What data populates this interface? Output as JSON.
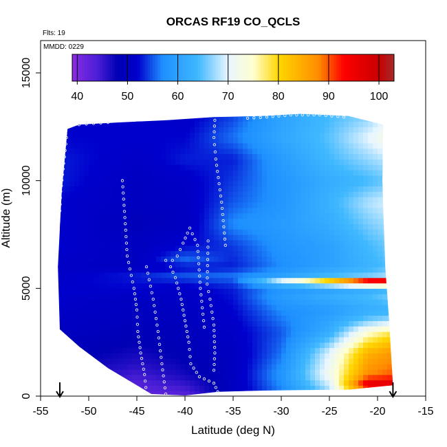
{
  "chart_data": {
    "type": "heatmap",
    "title": "ORCAS RF19 CO_QCLS",
    "xlabel": "Latitude (deg N)",
    "ylabel": "Altitude (m)",
    "xlim": [
      -55,
      -15
    ],
    "ylim": [
      0,
      16500
    ],
    "x_ticks": [
      -55,
      -50,
      -45,
      -40,
      -35,
      -30,
      -25,
      -20,
      -15
    ],
    "y_ticks": [
      0,
      5000,
      10000,
      15000
    ],
    "annotations": {
      "flights": "Flts: 19",
      "date": "MMDD: 0229"
    },
    "colorbar": {
      "ticks": [
        40,
        50,
        60,
        70,
        80,
        90,
        100
      ],
      "range": [
        39,
        103
      ],
      "stops": [
        [
          39,
          "#8a2be2"
        ],
        [
          44,
          "#4b1fd6"
        ],
        [
          48,
          "#0000b4"
        ],
        [
          52,
          "#0000cd"
        ],
        [
          57,
          "#1e90ff"
        ],
        [
          64,
          "#3fb8ff"
        ],
        [
          70,
          "#e8f6ff"
        ],
        [
          75,
          "#ffffd0"
        ],
        [
          80,
          "#ffd700"
        ],
        [
          88,
          "#ff8c00"
        ],
        [
          93,
          "#ff0000"
        ],
        [
          100,
          "#c80000"
        ],
        [
          103,
          "#a52a2a"
        ]
      ]
    },
    "domain_boundary": {
      "upper": [
        [
          -52.2,
          12400
        ],
        [
          -51,
          12600
        ],
        [
          -47,
          12700
        ],
        [
          -42,
          12800
        ],
        [
          -37,
          12950
        ],
        [
          -32,
          13000
        ],
        [
          -28,
          13100
        ],
        [
          -23,
          13000
        ],
        [
          -19.4,
          12600
        ]
      ],
      "lower": [
        [
          -53,
          3100
        ],
        [
          -51,
          2300
        ],
        [
          -48,
          1300
        ],
        [
          -45,
          500
        ],
        [
          -43.5,
          100
        ],
        [
          -40,
          30
        ],
        [
          -36.6,
          200
        ],
        [
          -33,
          250
        ],
        [
          -28,
          280
        ],
        [
          -23,
          300
        ],
        [
          -18.4,
          500
        ]
      ],
      "left": [
        [
          -53,
          3100
        ],
        [
          -53.2,
          6000
        ],
        [
          -52.8,
          9500
        ],
        [
          -52.2,
          12400
        ]
      ],
      "right": [
        [
          -19.4,
          12600
        ],
        [
          -19.5,
          10000
        ],
        [
          -19.2,
          6000
        ],
        [
          -18.8,
          3500
        ],
        [
          -18.4,
          500
        ]
      ]
    },
    "field_profiles": [
      {
        "lat": -53,
        "co": [
          [
            0,
            46
          ],
          [
            2000,
            49
          ],
          [
            3000,
            50
          ],
          [
            4000,
            51
          ],
          [
            5000,
            52
          ],
          [
            6000,
            51
          ],
          [
            7000,
            52
          ],
          [
            8000,
            52
          ],
          [
            9000,
            52
          ],
          [
            10000,
            53
          ],
          [
            11000,
            53
          ],
          [
            12000,
            52
          ],
          [
            13200,
            52
          ]
        ]
      },
      {
        "lat": -45,
        "co": [
          [
            0,
            42
          ],
          [
            800,
            44
          ],
          [
            1500,
            46
          ],
          [
            2500,
            48
          ],
          [
            3500,
            49.5
          ],
          [
            4500,
            50
          ],
          [
            5000,
            52
          ],
          [
            5600,
            53
          ],
          [
            6000,
            50
          ],
          [
            7000,
            50
          ],
          [
            8000,
            49
          ],
          [
            9000,
            50
          ],
          [
            10000,
            50
          ],
          [
            11000,
            51
          ],
          [
            12000,
            52
          ],
          [
            13200,
            52
          ]
        ]
      },
      {
        "lat": -40,
        "co": [
          [
            0,
            43
          ],
          [
            1000,
            47
          ],
          [
            2000,
            48.5
          ],
          [
            3000,
            49
          ],
          [
            4000,
            50
          ],
          [
            5000,
            51
          ],
          [
            5600,
            55
          ],
          [
            6000,
            52
          ],
          [
            6300,
            56
          ],
          [
            7000,
            52
          ],
          [
            8000,
            50
          ],
          [
            9000,
            50.5
          ],
          [
            10000,
            51
          ],
          [
            11000,
            53
          ],
          [
            12000,
            52
          ],
          [
            13200,
            51
          ]
        ]
      },
      {
        "lat": -35,
        "co": [
          [
            0,
            50
          ],
          [
            1000,
            50
          ],
          [
            2000,
            50
          ],
          [
            3000,
            51
          ],
          [
            4000,
            52
          ],
          [
            5000,
            53
          ],
          [
            5600,
            56
          ],
          [
            6000,
            53
          ],
          [
            7000,
            54
          ],
          [
            8000,
            57
          ],
          [
            9000,
            55
          ],
          [
            10000,
            54
          ],
          [
            11000,
            53
          ],
          [
            12000,
            56
          ],
          [
            13200,
            54
          ]
        ]
      },
      {
        "lat": -30,
        "co": [
          [
            0,
            56
          ],
          [
            1000,
            58
          ],
          [
            2000,
            56
          ],
          [
            3000,
            55
          ],
          [
            4000,
            57
          ],
          [
            4600,
            59
          ],
          [
            5000,
            58
          ],
          [
            5400,
            70
          ],
          [
            5600,
            60
          ],
          [
            6000,
            57
          ],
          [
            7000,
            58
          ],
          [
            8000,
            59
          ],
          [
            9000,
            58
          ],
          [
            10000,
            58
          ],
          [
            11000,
            59
          ],
          [
            12000,
            61
          ],
          [
            13200,
            60
          ]
        ]
      },
      {
        "lat": -25,
        "co": [
          [
            0,
            66
          ],
          [
            1000,
            72
          ],
          [
            2000,
            70
          ],
          [
            3000,
            62
          ],
          [
            4000,
            59
          ],
          [
            4600,
            62
          ],
          [
            5000,
            60
          ],
          [
            5400,
            82
          ],
          [
            5600,
            64
          ],
          [
            6000,
            60
          ],
          [
            7000,
            60
          ],
          [
            8000,
            62
          ],
          [
            9000,
            63
          ],
          [
            10000,
            62
          ],
          [
            11000,
            64
          ],
          [
            12000,
            65
          ],
          [
            13200,
            64
          ]
        ]
      },
      {
        "lat": -21,
        "co": [
          [
            0,
            78
          ],
          [
            500,
            98
          ],
          [
            1000,
            88
          ],
          [
            2000,
            84
          ],
          [
            3000,
            74
          ],
          [
            3500,
            66
          ],
          [
            4000,
            62
          ],
          [
            4600,
            64
          ],
          [
            5000,
            62
          ],
          [
            5400,
            95
          ],
          [
            5600,
            66
          ],
          [
            6000,
            63
          ],
          [
            7000,
            64
          ],
          [
            8000,
            66
          ],
          [
            9000,
            68
          ],
          [
            10000,
            64
          ],
          [
            11000,
            67
          ],
          [
            12000,
            70
          ],
          [
            13200,
            66
          ]
        ]
      },
      {
        "lat": -18.4,
        "co": [
          [
            0,
            80
          ],
          [
            500,
            98
          ],
          [
            1000,
            90
          ],
          [
            2000,
            87
          ],
          [
            3000,
            78
          ],
          [
            3500,
            68
          ],
          [
            4000,
            63
          ],
          [
            4600,
            66
          ],
          [
            5000,
            64
          ],
          [
            5400,
            97
          ],
          [
            5600,
            68
          ],
          [
            6000,
            65
          ],
          [
            7000,
            66
          ],
          [
            8000,
            68
          ],
          [
            9000,
            70
          ],
          [
            10000,
            66
          ],
          [
            11000,
            69
          ],
          [
            12000,
            74
          ],
          [
            13200,
            70
          ]
        ]
      }
    ],
    "flight_track": [
      [
        [
          -44,
          100
        ],
        [
          -44.2,
          1000
        ],
        [
          -44.6,
          2000
        ],
        [
          -44.9,
          3000
        ],
        [
          -45,
          4000
        ],
        [
          -45.3,
          5000
        ],
        [
          -46,
          6500
        ],
        [
          -46.2,
          8000
        ],
        [
          -46.5,
          10000
        ]
      ],
      [
        [
          -42,
          100
        ],
        [
          -42.4,
          1500
        ],
        [
          -42.8,
          3000
        ],
        [
          -43.3,
          4500
        ],
        [
          -44,
          6000
        ]
      ],
      [
        [
          -42,
          6300
        ],
        [
          -41.5,
          6000
        ],
        [
          -41,
          5500
        ],
        [
          -40.4,
          4500
        ],
        [
          -40,
          3500
        ],
        [
          -39.6,
          2500
        ],
        [
          -39.4,
          1500
        ],
        [
          -38.5,
          900
        ],
        [
          -37,
          600
        ],
        [
          -36.6,
          200
        ]
      ],
      [
        [
          -35.8,
          7000
        ],
        [
          -36.2,
          9000
        ],
        [
          -36.8,
          11000
        ],
        [
          -37,
          12000
        ],
        [
          -36.9,
          12800
        ]
      ],
      [
        [
          -38,
          3200
        ],
        [
          -38.4,
          5000
        ],
        [
          -38.7,
          7000
        ],
        [
          -39.5,
          7800
        ],
        [
          -40.2,
          7100
        ],
        [
          -40.8,
          6500
        ],
        [
          -41.3,
          6300
        ]
      ],
      [
        [
          -33.5,
          12900
        ],
        [
          -31.5,
          12950
        ],
        [
          -29,
          13050
        ],
        [
          -26,
          13050
        ],
        [
          -23.5,
          12950
        ]
      ],
      [
        [
          -51,
          12600
        ],
        [
          -49.5,
          12650
        ],
        [
          -48,
          12700
        ]
      ],
      [
        [
          -52.3,
          12000
        ],
        [
          -52.6,
          10800
        ],
        [
          -52.9,
          9500
        ],
        [
          -53,
          8600
        ]
      ],
      [
        [
          -37.6,
          7200
        ],
        [
          -37.7,
          5200
        ],
        [
          -37.4,
          4500
        ],
        [
          -37,
          3300
        ],
        [
          -36.9,
          2000
        ],
        [
          -37,
          1200
        ]
      ]
    ]
  }
}
